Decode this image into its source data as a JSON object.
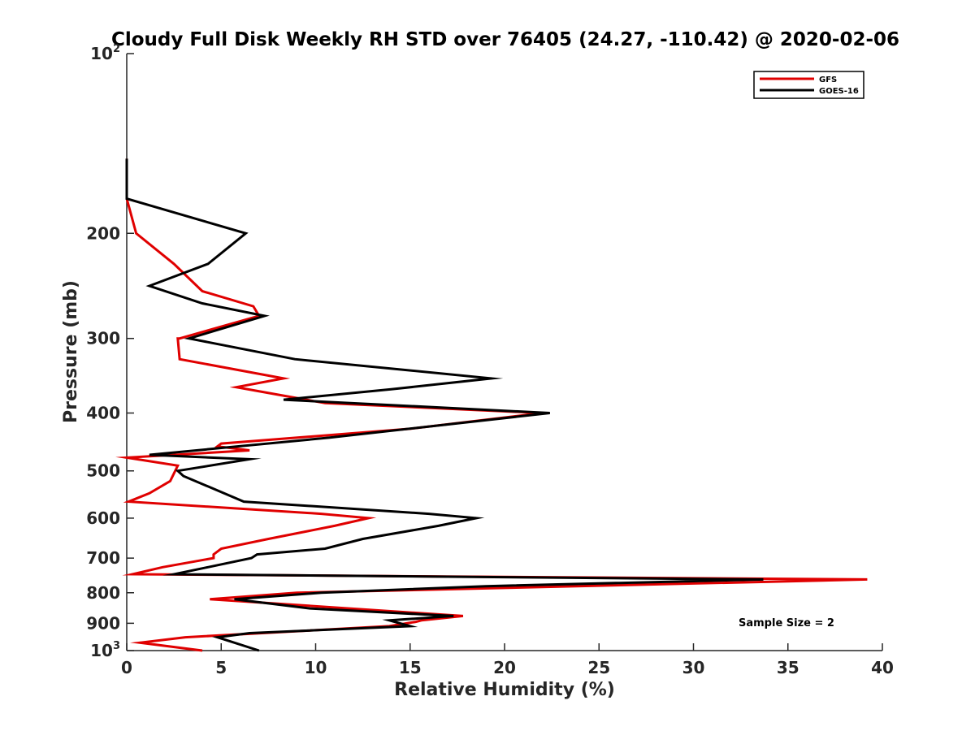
{
  "chart_data": {
    "type": "line",
    "title": "Cloudy Full Disk Weekly RH STD over 76405 (24.27, -110.42) @ 2020-02-06",
    "xlabel": "Relative Humidity (%)",
    "ylabel": "Pressure (mb)",
    "xlim": [
      0,
      40
    ],
    "ylim": [
      100,
      1000
    ],
    "yscale": "log",
    "y_reversed": true,
    "x_ticks": [
      0,
      5,
      10,
      15,
      20,
      25,
      30,
      35,
      40
    ],
    "x_tick_labels": [
      "0",
      "5",
      "10",
      "15",
      "20",
      "25",
      "30",
      "35",
      "40"
    ],
    "y_ticks": [
      100,
      200,
      300,
      400,
      500,
      600,
      700,
      800,
      900,
      1000
    ],
    "y_tick_labels": [
      {
        "base": "10",
        "exp": "2"
      },
      {
        "base": "200",
        "exp": ""
      },
      {
        "base": "300",
        "exp": ""
      },
      {
        "base": "400",
        "exp": ""
      },
      {
        "base": "500",
        "exp": ""
      },
      {
        "base": "600",
        "exp": ""
      },
      {
        "base": "700",
        "exp": ""
      },
      {
        "base": "800",
        "exp": ""
      },
      {
        "base": "900",
        "exp": ""
      },
      {
        "base": "10",
        "exp": "3"
      }
    ],
    "legend": {
      "position": "top-right",
      "entries": [
        "GFS",
        "GOES-16"
      ]
    },
    "annotation": "Sample Size = 2",
    "series": [
      {
        "name": "GFS",
        "color": "#e00000",
        "points": [
          [
            0,
            150
          ],
          [
            0,
            175
          ],
          [
            0.5,
            200
          ],
          [
            2.5,
            225
          ],
          [
            4,
            250
          ],
          [
            6.7,
            265
          ],
          [
            7,
            275
          ],
          [
            2.8,
            300
          ],
          [
            2.7,
            300
          ],
          [
            2.8,
            325
          ],
          [
            8.3,
            350
          ],
          [
            5.8,
            362
          ],
          [
            10.5,
            385
          ],
          [
            22,
            400
          ],
          [
            15,
            425
          ],
          [
            5,
            450
          ],
          [
            4.8,
            455
          ],
          [
            6.5,
            462
          ],
          [
            0,
            475
          ],
          [
            2.7,
            490
          ],
          [
            2.3,
            520
          ],
          [
            1.2,
            545
          ],
          [
            0.1,
            563
          ],
          [
            10.3,
            590
          ],
          [
            12.8,
            600
          ],
          [
            11,
            618
          ],
          [
            7.5,
            650
          ],
          [
            5,
            675
          ],
          [
            4.6,
            690
          ],
          [
            4.6,
            700
          ],
          [
            1.9,
            725
          ],
          [
            0.3,
            745
          ],
          [
            39.2,
            760
          ],
          [
            9,
            800
          ],
          [
            4.4,
            820
          ],
          [
            17.8,
            875
          ],
          [
            15.6,
            890
          ],
          [
            15.3,
            895
          ],
          [
            13.9,
            910
          ],
          [
            3.1,
            950
          ],
          [
            0.7,
            970
          ],
          [
            4,
            1000
          ]
        ]
      },
      {
        "name": "GOES-16",
        "color": "#000000",
        "points": [
          [
            0,
            150
          ],
          [
            0,
            175
          ],
          [
            6.3,
            200
          ],
          [
            4.3,
            225
          ],
          [
            1.2,
            245
          ],
          [
            4,
            262
          ],
          [
            7.3,
            275
          ],
          [
            3.3,
            300
          ],
          [
            8.9,
            325
          ],
          [
            19.3,
            350
          ],
          [
            14,
            365
          ],
          [
            8.3,
            380
          ],
          [
            22.4,
            400
          ],
          [
            10.7,
            440
          ],
          [
            1.2,
            470
          ],
          [
            6.5,
            478
          ],
          [
            2.7,
            500
          ],
          [
            3,
            510
          ],
          [
            6.2,
            563
          ],
          [
            16,
            590
          ],
          [
            18.5,
            600
          ],
          [
            16.5,
            618
          ],
          [
            12.5,
            650
          ],
          [
            10.5,
            675
          ],
          [
            6.9,
            690
          ],
          [
            6.6,
            700
          ],
          [
            4.3,
            725
          ],
          [
            2.5,
            745
          ],
          [
            33.7,
            760
          ],
          [
            19,
            780
          ],
          [
            10.3,
            800
          ],
          [
            5.7,
            820
          ],
          [
            9.7,
            850
          ],
          [
            17.3,
            875
          ],
          [
            13.9,
            890
          ],
          [
            15,
            910
          ],
          [
            6.5,
            935
          ],
          [
            4.8,
            950
          ],
          [
            7,
            1000
          ]
        ]
      }
    ]
  }
}
